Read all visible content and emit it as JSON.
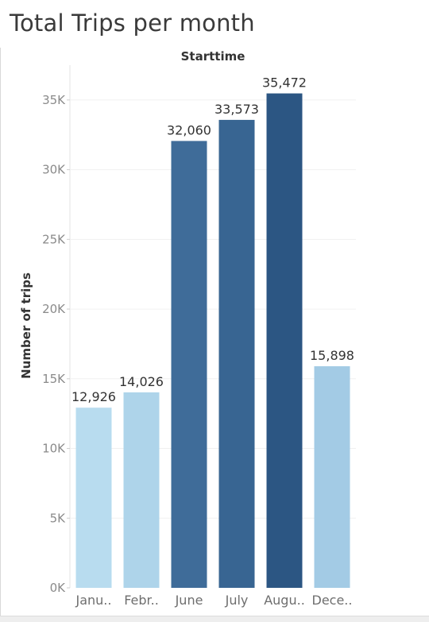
{
  "chart_data": {
    "type": "bar",
    "title": "Total Trips per month",
    "column_header": "Starttime",
    "xlabel": "",
    "ylabel": "Number of trips",
    "categories": [
      "Janu..",
      "Febr..",
      "June",
      "July",
      "Augu..",
      "Dece.."
    ],
    "values": [
      12926,
      14026,
      32060,
      33573,
      35472,
      15898
    ],
    "data_labels": [
      "12,926",
      "14,026",
      "32,060",
      "33,573",
      "35,472",
      "15,898"
    ],
    "bar_colors": [
      "#b8dcef",
      "#aed4ea",
      "#3f6c99",
      "#386592",
      "#2c5683",
      "#a3cbe5"
    ],
    "ylim": [
      0,
      37500
    ],
    "yticks": [
      0,
      5000,
      10000,
      15000,
      20000,
      25000,
      30000,
      35000
    ],
    "ytick_labels": [
      "0K",
      "5K",
      "10K",
      "15K",
      "20K",
      "25K",
      "30K",
      "35K"
    ],
    "grid": true
  }
}
